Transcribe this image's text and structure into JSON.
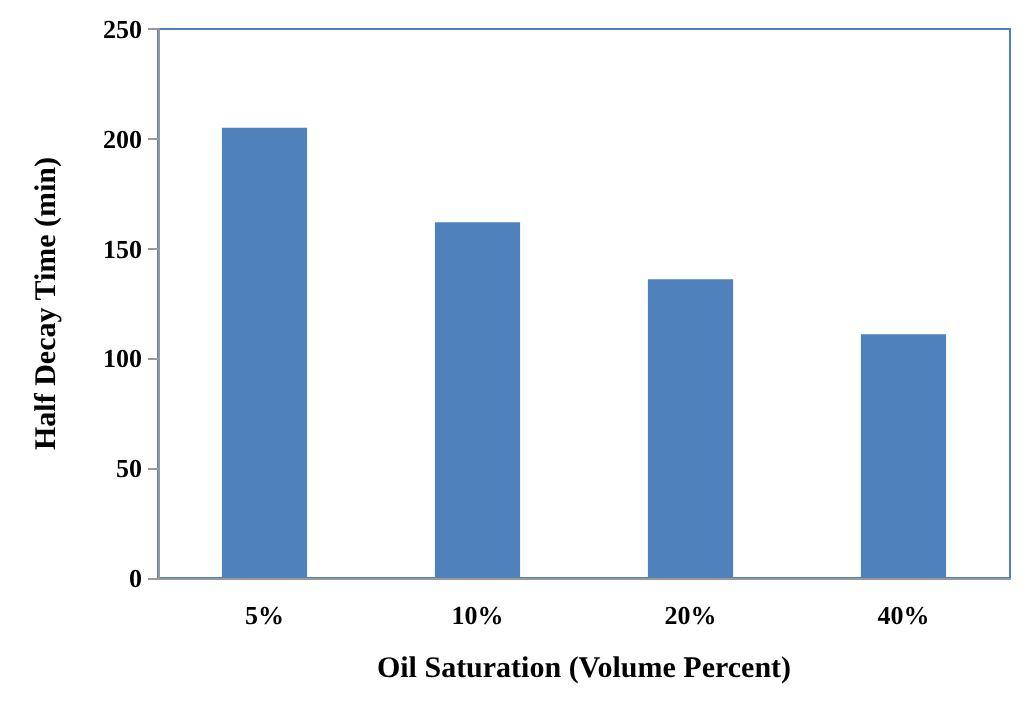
{
  "chart_data": {
    "type": "bar",
    "xlabel": "Oil Saturation (Volume Percent)",
    "ylabel": "Half Decay Time (min)",
    "categories": [
      "5%",
      "10%",
      "20%",
      "40%"
    ],
    "values": [
      205,
      162,
      136,
      111
    ],
    "color": "#4f81bd",
    "ylim": [
      0,
      250
    ],
    "yticks": [
      0,
      50,
      100,
      150,
      200,
      250
    ]
  }
}
